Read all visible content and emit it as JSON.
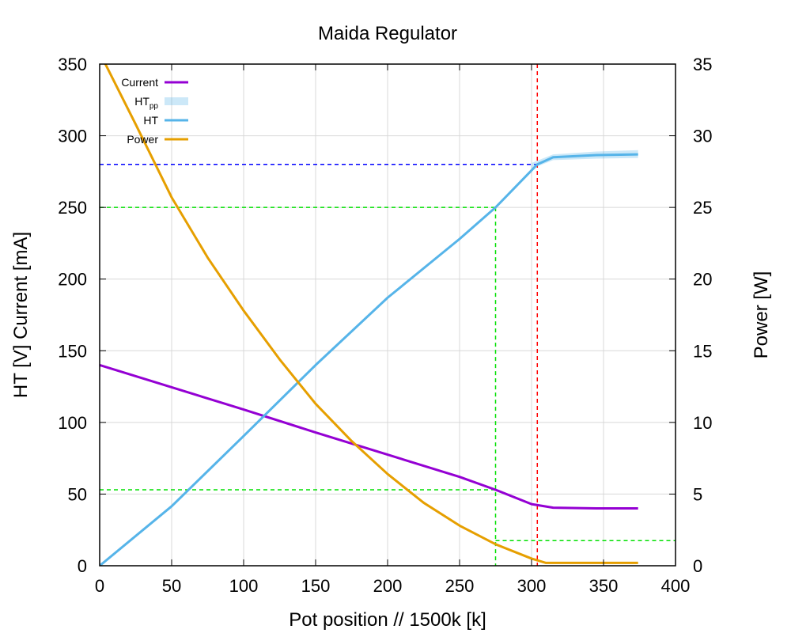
{
  "chart_data": {
    "type": "line",
    "title": "Maida Regulator",
    "xlabel": "Pot position // 1500k [k]",
    "ylabel": "HT [V] Current [mA]",
    "y2label": "Power [W]",
    "xlim": [
      0,
      400
    ],
    "ylim": [
      0,
      350
    ],
    "y2lim": [
      0,
      35
    ],
    "x_ticks": [
      "0",
      "50",
      "100",
      "150",
      "200",
      "250",
      "300",
      "350",
      "400"
    ],
    "y_ticks": [
      "0",
      "50",
      "100",
      "150",
      "200",
      "250",
      "300",
      "350"
    ],
    "y2_ticks": [
      "0",
      "5",
      "10",
      "15",
      "20",
      "25",
      "30",
      "35"
    ],
    "grid": true,
    "legend_position": "top-left",
    "series": [
      {
        "name": "Current",
        "axis": "y",
        "color": "#9400d3",
        "x": [
          0,
          50,
          100,
          150,
          200,
          250,
          275,
          300,
          315,
          345,
          374
        ],
        "y": [
          140,
          124.5,
          109,
          93,
          77.5,
          62,
          53,
          43,
          40.5,
          40,
          40
        ]
      },
      {
        "name": "HT_pp",
        "display_name": "HT",
        "display_sub": "pp",
        "axis": "y",
        "color": "#56b4e9",
        "band": true,
        "x": [
          300,
          315,
          345,
          374
        ],
        "y_low": [
          277,
          283,
          284,
          284.5
        ],
        "y_high": [
          281,
          287,
          289,
          290
        ]
      },
      {
        "name": "HT",
        "axis": "y",
        "color": "#56b4e9",
        "x": [
          0,
          50,
          100,
          150,
          200,
          250,
          275,
          304,
          315,
          345,
          374
        ],
        "y": [
          0,
          41.5,
          90.5,
          140,
          187,
          228,
          250,
          280,
          285,
          286.5,
          287
        ]
      },
      {
        "name": "Power",
        "axis": "y2",
        "color": "#e69f00",
        "x": [
          0,
          25,
          50,
          75,
          100,
          125,
          150,
          175,
          200,
          225,
          250,
          275,
          300,
          310,
          345,
          374
        ],
        "y": [
          35.8,
          30.8,
          25.7,
          21.5,
          17.8,
          14.4,
          11.3,
          8.7,
          6.4,
          4.4,
          2.8,
          1.5,
          0.5,
          0.2,
          0.2,
          0.2
        ]
      }
    ],
    "reference_lines": [
      {
        "kind": "vertical",
        "x": 304,
        "color": "#ff0000"
      },
      {
        "kind": "horizontal",
        "y": 280,
        "x_from": 0,
        "x_to": 304,
        "color": "#0000ff"
      },
      {
        "kind": "horizontal",
        "y": 250,
        "x_from": 0,
        "x_to": 275,
        "color": "#00e000"
      },
      {
        "kind": "horizontal",
        "y": 53,
        "x_from": 0,
        "x_to": 275,
        "color": "#00e000"
      },
      {
        "kind": "vertical",
        "x": 275,
        "y_from": 0,
        "y_to": 250,
        "color": "#00e000"
      },
      {
        "kind": "horizontal",
        "y2": 1.75,
        "x_from": 275,
        "x_to": 400,
        "color": "#00e000"
      }
    ]
  }
}
